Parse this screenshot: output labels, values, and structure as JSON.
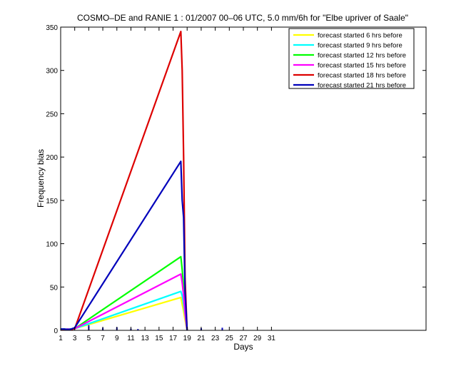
{
  "chart_data": {
    "type": "line",
    "title": "COSMO–DE and RANIE 1 : 01/2007 00–06 UTC, 5.0 mm/6h for \"Elbe upriver of Saale\"",
    "xlabel": "Days",
    "ylabel": "Frequency bias",
    "xlim": [
      1,
      53
    ],
    "ylim": [
      0,
      350
    ],
    "x_ticks": [
      1,
      3,
      5,
      7,
      9,
      11,
      13,
      15,
      17,
      19,
      21,
      23,
      25,
      27,
      29,
      31
    ],
    "y_ticks": [
      0,
      50,
      100,
      150,
      200,
      250,
      300,
      350
    ],
    "grid": false,
    "legend_position": "top-right",
    "series": [
      {
        "name": "forecast started 6 hrs before",
        "color": "#ffff00",
        "x": [
          1,
          1.5,
          2,
          2.5,
          3,
          18.1,
          18.3,
          18.5,
          18.7,
          19
        ],
        "y": [
          1,
          1,
          1,
          1,
          2,
          38,
          30,
          22,
          12,
          0
        ]
      },
      {
        "name": "forecast started 9 hrs before",
        "color": "#00ffff",
        "x": [
          1,
          1.5,
          2,
          2.5,
          3,
          18.1,
          18.3,
          18.5,
          18.7,
          19
        ],
        "y": [
          1.5,
          1,
          1.5,
          1,
          2,
          45,
          40,
          30,
          18,
          0
        ]
      },
      {
        "name": "forecast started 12 hrs before",
        "color": "#00ff00",
        "x": [
          1,
          1.5,
          2,
          2.5,
          3,
          18.1,
          18.3,
          18.5,
          18.7,
          19
        ],
        "y": [
          1,
          1.5,
          1,
          1.5,
          2,
          85,
          70,
          50,
          25,
          0
        ]
      },
      {
        "name": "forecast started 15 hrs before",
        "color": "#ff00ff",
        "x": [
          1,
          1.5,
          2,
          2.5,
          3,
          18.1,
          18.3,
          18.5,
          18.7,
          19
        ],
        "y": [
          1,
          1,
          1.5,
          1,
          2,
          65,
          55,
          40,
          20,
          0
        ]
      },
      {
        "name": "forecast started 18 hrs before",
        "color": "#dd0000",
        "x": [
          1,
          1.5,
          2,
          2.5,
          3,
          18.1,
          18.3,
          18.5,
          18.7,
          19
        ],
        "y": [
          1,
          1,
          1,
          1,
          2,
          345,
          300,
          200,
          60,
          0
        ]
      },
      {
        "name": "forecast started 21 hrs before",
        "color": "#0000bb",
        "x": [
          1,
          1.5,
          2,
          2.5,
          3,
          18.1,
          18.3,
          18.5,
          18.7,
          19
        ],
        "y": [
          1.5,
          1.5,
          1,
          1.5,
          3,
          195,
          150,
          130,
          45,
          0
        ]
      }
    ],
    "markers": [
      {
        "x": 5,
        "y": 6,
        "color": "#0000bb"
      },
      {
        "x": 7,
        "y": 3,
        "color": "#0000bb"
      },
      {
        "x": 9,
        "y": 3.5,
        "color": "#0000bb"
      },
      {
        "x": 11,
        "y": 2,
        "color": "#0000bb"
      },
      {
        "x": 12,
        "y": 1.5,
        "color": "#0000bb"
      },
      {
        "x": 21,
        "y": 2.5,
        "color": "#0000bb"
      },
      {
        "x": 24,
        "y": 3,
        "color": "#0000bb"
      }
    ]
  }
}
